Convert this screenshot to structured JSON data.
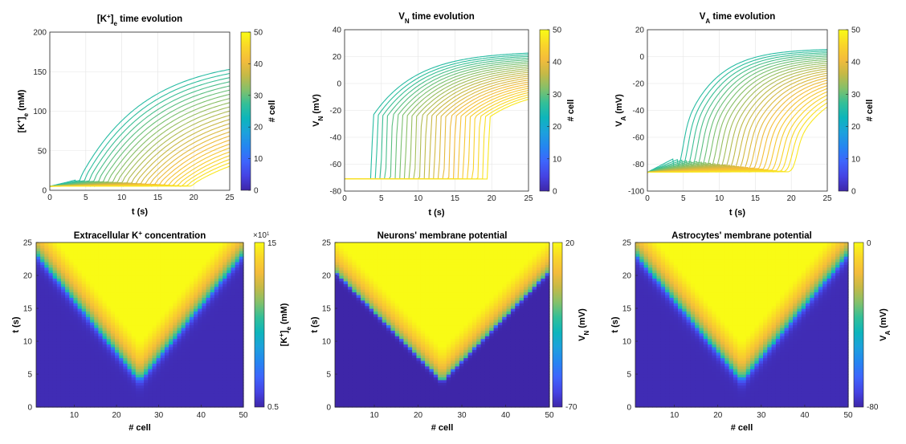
{
  "chart_data": [
    {
      "id": "k-evolution",
      "type": "line",
      "title_parts": [
        "[K",
        "+",
        "]",
        "e",
        " time evolution"
      ],
      "xlabel": "t (s)",
      "ylabel_parts": [
        "[K",
        "+",
        "]",
        "e",
        " (mM)"
      ],
      "xlim": [
        0,
        25
      ],
      "ylim": [
        0,
        200
      ],
      "xticks": [
        "0",
        "5",
        "10",
        "15",
        "20",
        "25"
      ],
      "yticks": [
        "0",
        "50",
        "100",
        "150",
        "200"
      ],
      "colorbar": {
        "label": "# cell",
        "range": [
          0,
          50
        ],
        "ticks": [
          "0",
          "10",
          "20",
          "30",
          "40",
          "50"
        ]
      },
      "grid": true,
      "series_count": 25,
      "curve_model": {
        "baseline": 5,
        "final_value": 168,
        "jump_at_onset": 0
      }
    },
    {
      "id": "vn-evolution",
      "type": "line",
      "title_parts": [
        "V",
        "N",
        " time evolution"
      ],
      "xlabel": "t (s)",
      "ylabel_parts": [
        "V",
        "N",
        " (mV)"
      ],
      "xlim": [
        0,
        25
      ],
      "ylim": [
        -80,
        40
      ],
      "xticks": [
        "0",
        "5",
        "10",
        "15",
        "20",
        "25"
      ],
      "yticks": [
        "-80",
        "-60",
        "-40",
        "-20",
        "0",
        "20",
        "40"
      ],
      "colorbar": {
        "label": "# cell",
        "range": [
          0,
          50
        ],
        "ticks": [
          "0",
          "10",
          "20",
          "30",
          "40",
          "50"
        ]
      },
      "grid": true,
      "series_count": 25,
      "curve_model": {
        "baseline": -71,
        "final_value": 24,
        "jump_at_onset": 45
      }
    },
    {
      "id": "va-evolution",
      "type": "line",
      "title_parts": [
        "V",
        "A",
        " time evolution"
      ],
      "xlabel": "t (s)",
      "ylabel_parts": [
        "V",
        "A",
        " (mV)"
      ],
      "xlim": [
        0,
        25
      ],
      "ylim": [
        -100,
        20
      ],
      "xticks": [
        "0",
        "5",
        "10",
        "15",
        "20",
        "25"
      ],
      "yticks": [
        "-100",
        "-80",
        "-60",
        "-40",
        "-20",
        "0",
        "20"
      ],
      "colorbar": {
        "label": "# cell",
        "range": [
          0,
          50
        ],
        "ticks": [
          "0",
          "10",
          "20",
          "30",
          "40",
          "50"
        ]
      },
      "grid": true,
      "series_count": 25,
      "curve_model": {
        "baseline": -86,
        "final_value": 6,
        "jump_at_onset": 0
      }
    },
    {
      "id": "k-heatmap",
      "type": "heatmap",
      "title_parts": [
        "Extracellular K",
        "+",
        " concentration"
      ],
      "xlabel": "# cell",
      "ylabel": "t (s)",
      "xlim": [
        1,
        50
      ],
      "ylim": [
        0,
        25
      ],
      "xticks": [
        "10",
        "20",
        "30",
        "40",
        "50"
      ],
      "yticks": [
        "0",
        "5",
        "10",
        "15",
        "20",
        "25"
      ],
      "colorbar": {
        "label_parts": [
          "[K",
          "+",
          "]",
          "e",
          " (mM)"
        ],
        "min_label": "0.5",
        "max_label": "15",
        "exponent_label": "×10",
        "exponent_power": "1"
      },
      "wave_front": {
        "center_cell": 25.5,
        "onset_time": 4,
        "speed_cells_per_s": 1.3
      }
    },
    {
      "id": "vn-heatmap",
      "type": "heatmap",
      "title_parts": [
        "Neurons' membrane potential"
      ],
      "xlabel": "# cell",
      "ylabel": "t (s)",
      "xlim": [
        1,
        50
      ],
      "ylim": [
        0,
        25
      ],
      "xticks": [
        "10",
        "20",
        "30",
        "40",
        "50"
      ],
      "yticks": [
        "0",
        "5",
        "10",
        "15",
        "20",
        "25"
      ],
      "colorbar": {
        "label_parts": [
          "V",
          "N",
          " (mV)"
        ],
        "min_label": "-70",
        "max_label": "20"
      },
      "wave_front": {
        "center_cell": 25.5,
        "onset_time": 4,
        "speed_cells_per_s": 1.5
      }
    },
    {
      "id": "va-heatmap",
      "type": "heatmap",
      "title_parts": [
        "Astrocytes' membrane potential"
      ],
      "xlabel": "# cell",
      "ylabel": "t (s)",
      "xlim": [
        1,
        50
      ],
      "ylim": [
        0,
        25
      ],
      "xticks": [
        "10",
        "20",
        "30",
        "40",
        "50"
      ],
      "yticks": [
        "0",
        "5",
        "10",
        "15",
        "20",
        "25"
      ],
      "colorbar": {
        "label_parts": [
          "V",
          "A",
          " (mV)"
        ],
        "min_label": "-80",
        "max_label": "0"
      },
      "wave_front": {
        "center_cell": 25.5,
        "onset_time": 4,
        "speed_cells_per_s": 1.3
      }
    }
  ],
  "colors": {
    "parula": [
      "#3e26a8",
      "#4543e3",
      "#3e64fc",
      "#2585f1",
      "#1ca1dc",
      "#0db5bb",
      "#33bf98",
      "#84c06a",
      "#c5b946",
      "#f4bc3b",
      "#f9d629",
      "#f9fb15"
    ]
  }
}
